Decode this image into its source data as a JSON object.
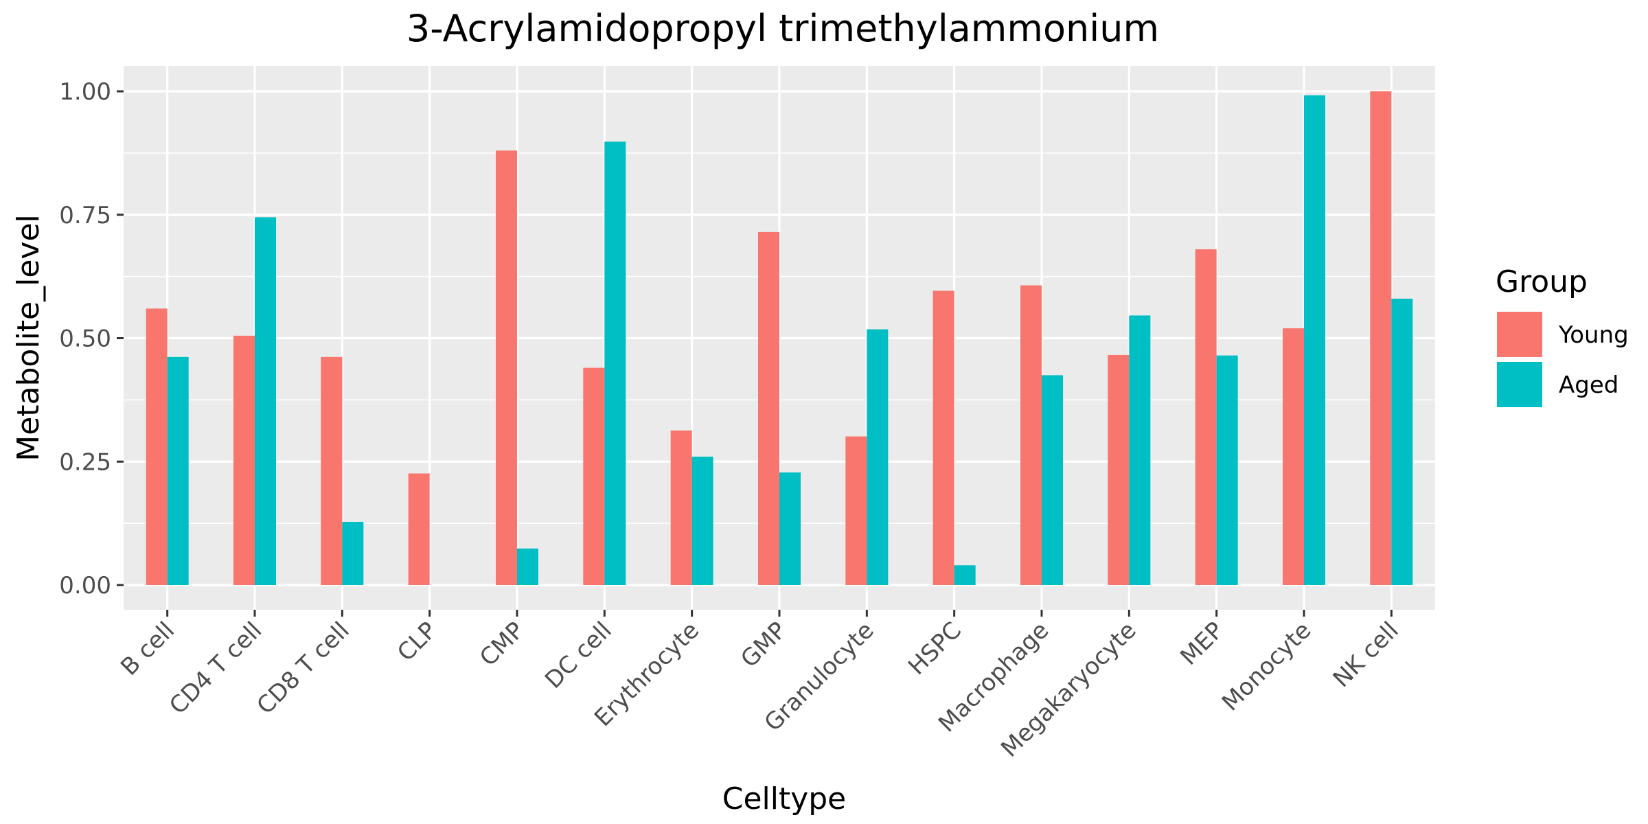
{
  "chart_data": {
    "type": "bar",
    "title": "3-Acrylamidopropyl trimethylammonium",
    "xlabel": "Celltype",
    "ylabel": "Metabolite_level",
    "ylim": [
      -0.05,
      1.05
    ],
    "yticks": [
      "0.00",
      "0.25",
      "0.50",
      "0.75",
      "1.00"
    ],
    "ytick_values": [
      0,
      0.25,
      0.5,
      0.75,
      1.0
    ],
    "grid": true,
    "legend_position": "right",
    "legend_title": "Group",
    "categories": [
      "B cell",
      "CD4 T cell",
      "CD8 T cell",
      "CLP",
      "CMP",
      "DC cell",
      "Erythrocyte",
      "GMP",
      "Granulocyte",
      "HSPC",
      "Macrophage",
      "Megakaryocyte",
      "MEP",
      "Monocyte",
      "NK cell"
    ],
    "series": [
      {
        "name": "Young",
        "color": "#F8766D",
        "values": [
          0.56,
          0.505,
          0.462,
          0.226,
          0.88,
          0.44,
          0.313,
          0.715,
          0.301,
          0.596,
          0.607,
          0.466,
          0.68,
          0.52,
          1.0
        ]
      },
      {
        "name": "Aged",
        "color": "#00BFC4",
        "values": [
          0.462,
          0.745,
          0.128,
          null,
          0.074,
          0.898,
          0.26,
          0.228,
          0.518,
          0.04,
          0.425,
          0.546,
          0.465,
          0.992,
          0.58
        ]
      }
    ]
  },
  "colors": {
    "panel_background": "#EBEBEB",
    "grid": "#FFFFFF",
    "tick_mark": "#333333"
  }
}
